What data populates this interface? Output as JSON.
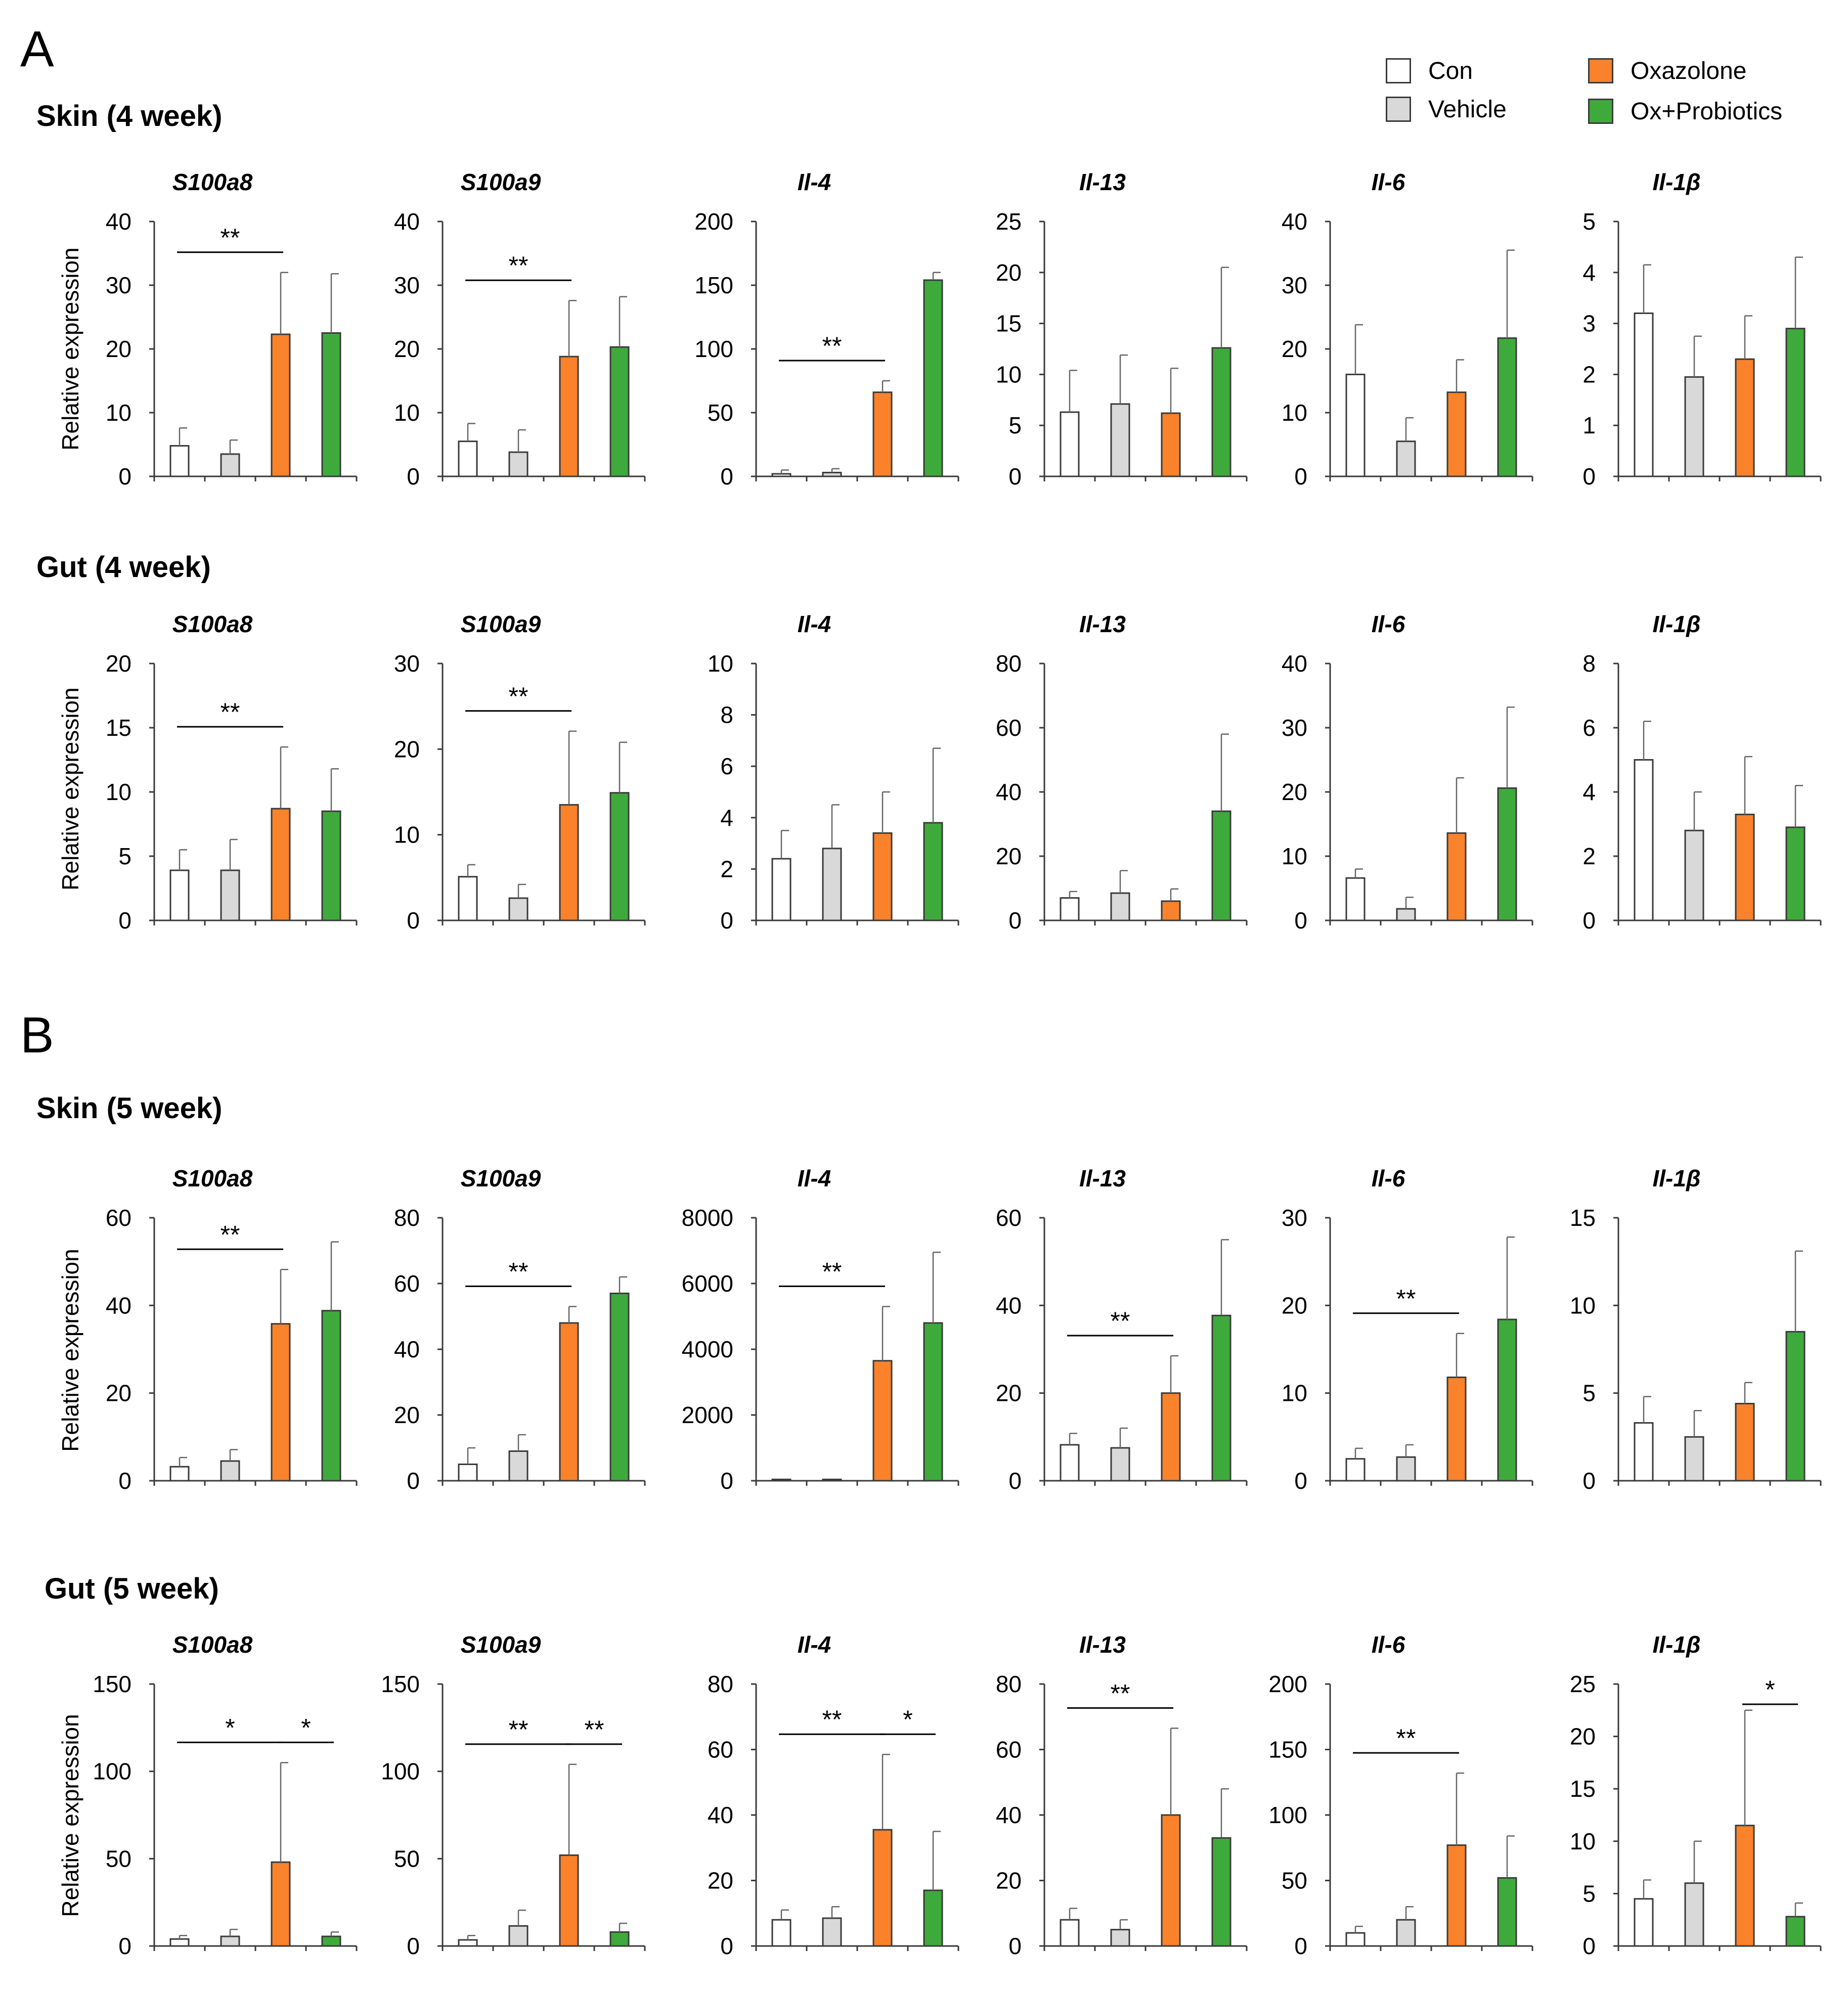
{
  "figure": {
    "panels": [
      {
        "letter": "A",
        "sections": [
          "Skin (4 week)",
          "Gut (4 week)"
        ]
      },
      {
        "letter": "B",
        "sections": [
          "Skin (5 week)",
          "Gut (5 week)"
        ]
      }
    ]
  },
  "legend": [
    {
      "label": "Con",
      "color": "#ffffff"
    },
    {
      "label": "Vehicle",
      "color": "#d9d9d9"
    },
    {
      "label": "Oxazolone",
      "color": "#f9822b"
    },
    {
      "label": "Ox+Probiotics",
      "color": "#3eaa3c"
    }
  ],
  "colors": {
    "axis": "#3a3a3a",
    "bar_edge": "#3a3a3a"
  },
  "chart_data": [
    {
      "type": "bar",
      "section": "Skin (4 week)",
      "title": "S100a8",
      "ylabel": "Relative expression",
      "categories": [
        "Con",
        "Vehicle",
        "Oxazolone",
        "Ox+Probiotics"
      ],
      "values": [
        4.8,
        3.5,
        22.3,
        22.5
      ],
      "errors": [
        2.8,
        2.2,
        9.7,
        9.3
      ],
      "ylim": [
        0,
        40
      ],
      "yticks": [
        0,
        10,
        20,
        30,
        40
      ],
      "significance": [
        {
          "from": 0,
          "to": 2,
          "label": "**"
        }
      ]
    },
    {
      "type": "bar",
      "section": "Skin (4 week)",
      "title": "S100a9",
      "ylabel": "",
      "categories": [
        "Con",
        "Vehicle",
        "Oxazolone",
        "Ox+Probiotics"
      ],
      "values": [
        5.5,
        3.8,
        18.8,
        20.3
      ],
      "errors": [
        2.8,
        3.5,
        8.8,
        7.9
      ],
      "ylim": [
        0,
        40
      ],
      "yticks": [
        0,
        10,
        20,
        30,
        40
      ],
      "significance": [
        {
          "from": 0,
          "to": 2,
          "label": "**"
        }
      ]
    },
    {
      "type": "bar",
      "section": "Skin (4 week)",
      "title": "Il-4",
      "ylabel": "",
      "categories": [
        "Con",
        "Vehicle",
        "Oxazolone",
        "Ox+Probiotics"
      ],
      "values": [
        2,
        3,
        66,
        154
      ],
      "errors": [
        3,
        3,
        9,
        6
      ],
      "ylim": [
        0,
        200
      ],
      "yticks": [
        0,
        50,
        100,
        150,
        200
      ],
      "significance": [
        {
          "from": 0,
          "to": 2,
          "label": "**"
        }
      ]
    },
    {
      "type": "bar",
      "section": "Skin (4 week)",
      "title": "Il-13",
      "ylabel": "",
      "categories": [
        "Con",
        "Vehicle",
        "Oxazolone",
        "Ox+Probiotics"
      ],
      "values": [
        6.3,
        7.1,
        6.2,
        12.6
      ],
      "errors": [
        4.1,
        4.8,
        4.4,
        7.9
      ],
      "ylim": [
        0,
        25
      ],
      "yticks": [
        0,
        5,
        10,
        15,
        20,
        25
      ],
      "significance": []
    },
    {
      "type": "bar",
      "section": "Skin (4 week)",
      "title": "Il-6",
      "ylabel": "",
      "categories": [
        "Con",
        "Vehicle",
        "Oxazolone",
        "Ox+Probiotics"
      ],
      "values": [
        16,
        5.5,
        13.2,
        21.7
      ],
      "errors": [
        7.8,
        3.7,
        5.1,
        13.8
      ],
      "ylim": [
        0,
        40
      ],
      "yticks": [
        0,
        10,
        20,
        30,
        40
      ],
      "significance": []
    },
    {
      "type": "bar",
      "section": "Skin (4 week)",
      "title": "Il-1β",
      "ylabel": "",
      "categories": [
        "Con",
        "Vehicle",
        "Oxazolone",
        "Ox+Probiotics"
      ],
      "values": [
        3.2,
        1.95,
        2.3,
        2.9
      ],
      "errors": [
        0.95,
        0.8,
        0.85,
        1.4
      ],
      "ylim": [
        0,
        5
      ],
      "yticks": [
        0,
        1,
        2,
        3,
        4,
        5
      ],
      "significance": []
    },
    {
      "type": "bar",
      "section": "Gut (4 week)",
      "title": "S100a8",
      "ylabel": "Relative expression",
      "categories": [
        "Con",
        "Vehicle",
        "Oxazolone",
        "Ox+Probiotics"
      ],
      "values": [
        3.9,
        3.9,
        8.7,
        8.5
      ],
      "errors": [
        1.6,
        2.4,
        4.8,
        3.3
      ],
      "ylim": [
        0,
        20
      ],
      "yticks": [
        0,
        5,
        10,
        15,
        20
      ],
      "significance": [
        {
          "from": 0,
          "to": 2,
          "label": "**"
        }
      ]
    },
    {
      "type": "bar",
      "section": "Gut (4 week)",
      "title": "S100a9",
      "ylabel": "",
      "categories": [
        "Con",
        "Vehicle",
        "Oxazolone",
        "Ox+Probiotics"
      ],
      "values": [
        5.1,
        2.6,
        13.5,
        14.9
      ],
      "errors": [
        1.4,
        1.6,
        8.6,
        5.9
      ],
      "ylim": [
        0,
        30
      ],
      "yticks": [
        0,
        10,
        20,
        30
      ],
      "significance": [
        {
          "from": 0,
          "to": 2,
          "label": "**"
        }
      ]
    },
    {
      "type": "bar",
      "section": "Gut (4 week)",
      "title": "Il-4",
      "ylabel": "",
      "categories": [
        "Con",
        "Vehicle",
        "Oxazolone",
        "Ox+Probiotics"
      ],
      "values": [
        2.4,
        2.8,
        3.4,
        3.8
      ],
      "errors": [
        1.1,
        1.7,
        1.6,
        2.9
      ],
      "ylim": [
        0,
        10
      ],
      "yticks": [
        0,
        2,
        4,
        6,
        8,
        10
      ],
      "significance": []
    },
    {
      "type": "bar",
      "section": "Gut (4 week)",
      "title": "Il-13",
      "ylabel": "",
      "categories": [
        "Con",
        "Vehicle",
        "Oxazolone",
        "Ox+Probiotics"
      ],
      "values": [
        7,
        8.5,
        6,
        34
      ],
      "errors": [
        2,
        7,
        3.8,
        24
      ],
      "ylim": [
        0,
        80
      ],
      "yticks": [
        0,
        20,
        40,
        60,
        80
      ],
      "significance": []
    },
    {
      "type": "bar",
      "section": "Gut (4 week)",
      "title": "Il-6",
      "ylabel": "",
      "categories": [
        "Con",
        "Vehicle",
        "Oxazolone",
        "Ox+Probiotics"
      ],
      "values": [
        6.6,
        1.8,
        13.6,
        20.6
      ],
      "errors": [
        1.4,
        1.8,
        8.6,
        12.6
      ],
      "ylim": [
        0,
        40
      ],
      "yticks": [
        0,
        10,
        20,
        30,
        40
      ],
      "significance": []
    },
    {
      "type": "bar",
      "section": "Gut (4 week)",
      "title": "Il-1β",
      "ylabel": "",
      "categories": [
        "Con",
        "Vehicle",
        "Oxazolone",
        "Ox+Probiotics"
      ],
      "values": [
        5,
        2.8,
        3.3,
        2.9
      ],
      "errors": [
        1.2,
        1.2,
        1.8,
        1.3
      ],
      "ylim": [
        0,
        8
      ],
      "yticks": [
        0,
        2,
        4,
        6,
        8
      ],
      "significance": []
    },
    {
      "type": "bar",
      "section": "Skin (5 week)",
      "title": "S100a8",
      "ylabel": "Relative expression",
      "categories": [
        "Con",
        "Vehicle",
        "Oxazolone",
        "Ox+Probiotics"
      ],
      "values": [
        3.2,
        4.5,
        35.8,
        38.8
      ],
      "errors": [
        2.1,
        2.6,
        12.4,
        15.7
      ],
      "ylim": [
        0,
        60
      ],
      "yticks": [
        0,
        20,
        40,
        60
      ],
      "significance": [
        {
          "from": 0,
          "to": 2,
          "label": "**"
        }
      ]
    },
    {
      "type": "bar",
      "section": "Skin (5 week)",
      "title": "S100a9",
      "ylabel": "",
      "categories": [
        "Con",
        "Vehicle",
        "Oxazolone",
        "Ox+Probiotics"
      ],
      "values": [
        5,
        9,
        48,
        57
      ],
      "errors": [
        5,
        5,
        5,
        5
      ],
      "ylim": [
        0,
        80
      ],
      "yticks": [
        0,
        20,
        40,
        60,
        80
      ],
      "significance": [
        {
          "from": 0,
          "to": 2,
          "label": "**"
        }
      ]
    },
    {
      "type": "bar",
      "section": "Skin (5 week)",
      "title": "Il-4",
      "ylabel": "",
      "categories": [
        "Con",
        "Vehicle",
        "Oxazolone",
        "Ox+Probiotics"
      ],
      "values": [
        40,
        40,
        3650,
        4800
      ],
      "errors": [
        0,
        0,
        1650,
        2150
      ],
      "ylim": [
        0,
        8000
      ],
      "yticks": [
        0,
        2000,
        4000,
        6000,
        8000
      ],
      "significance": [
        {
          "from": 0,
          "to": 2,
          "label": "**"
        }
      ]
    },
    {
      "type": "bar",
      "section": "Skin (5 week)",
      "title": "Il-13",
      "ylabel": "",
      "categories": [
        "Con",
        "Vehicle",
        "Oxazolone",
        "Ox+Probiotics"
      ],
      "values": [
        8.2,
        7.5,
        20,
        37.7
      ],
      "errors": [
        2.6,
        4.5,
        8.5,
        17.3
      ],
      "ylim": [
        0,
        60
      ],
      "yticks": [
        0,
        20,
        40,
        60
      ],
      "significance": [
        {
          "from": 0,
          "to": 2,
          "label": "**"
        }
      ]
    },
    {
      "type": "bar",
      "section": "Skin (5 week)",
      "title": "Il-6",
      "ylabel": "",
      "categories": [
        "Con",
        "Vehicle",
        "Oxazolone",
        "Ox+Probiotics"
      ],
      "values": [
        2.5,
        2.7,
        11.8,
        18.4
      ],
      "errors": [
        1.2,
        1.4,
        5,
        9.4
      ],
      "ylim": [
        0,
        30
      ],
      "yticks": [
        0,
        10,
        20,
        30
      ],
      "significance": [
        {
          "from": 0,
          "to": 2,
          "label": "**"
        }
      ]
    },
    {
      "type": "bar",
      "section": "Skin (5 week)",
      "title": "Il-1β",
      "ylabel": "",
      "categories": [
        "Con",
        "Vehicle",
        "Oxazolone",
        "Ox+Probiotics"
      ],
      "values": [
        3.3,
        2.5,
        4.4,
        8.5
      ],
      "errors": [
        1.5,
        1.5,
        1.2,
        4.6
      ],
      "ylim": [
        0,
        15
      ],
      "yticks": [
        0,
        5,
        10,
        15
      ],
      "significance": []
    },
    {
      "type": "bar",
      "section": "Gut (5 week)",
      "title": "S100a8",
      "ylabel": "Relative expression",
      "categories": [
        "Con",
        "Vehicle",
        "Oxazolone",
        "Ox+Probiotics"
      ],
      "values": [
        4,
        5.5,
        48,
        5.5
      ],
      "errors": [
        2,
        4,
        57,
        2.5
      ],
      "ylim": [
        0,
        150
      ],
      "yticks": [
        0,
        50,
        100,
        150
      ],
      "significance": [
        {
          "from": 0,
          "to": 2,
          "label": "*"
        },
        {
          "from": 2,
          "to": 3,
          "label": "*"
        }
      ]
    },
    {
      "type": "bar",
      "section": "Gut (5 week)",
      "title": "S100a9",
      "ylabel": "",
      "categories": [
        "Con",
        "Vehicle",
        "Oxazolone",
        "Ox+Probiotics"
      ],
      "values": [
        3.5,
        11.5,
        52,
        8
      ],
      "errors": [
        2.5,
        9,
        52,
        5
      ],
      "ylim": [
        0,
        150
      ],
      "yticks": [
        0,
        50,
        100,
        150
      ],
      "significance": [
        {
          "from": 0,
          "to": 2,
          "label": "**"
        },
        {
          "from": 2,
          "to": 3,
          "label": "**"
        }
      ]
    },
    {
      "type": "bar",
      "section": "Gut (5 week)",
      "title": "Il-4",
      "ylabel": "",
      "categories": [
        "Con",
        "Vehicle",
        "Oxazolone",
        "Ox+Probiotics"
      ],
      "values": [
        8,
        8.5,
        35.5,
        17
      ],
      "errors": [
        3,
        3.5,
        23,
        18
      ],
      "ylim": [
        0,
        80
      ],
      "yticks": [
        0,
        20,
        40,
        60,
        80
      ],
      "significance": [
        {
          "from": 0,
          "to": 2,
          "label": "**"
        },
        {
          "from": 2,
          "to": 3,
          "label": "*"
        }
      ]
    },
    {
      "type": "bar",
      "section": "Gut (5 week)",
      "title": "Il-13",
      "ylabel": "",
      "categories": [
        "Con",
        "Vehicle",
        "Oxazolone",
        "Ox+Probiotics"
      ],
      "values": [
        8,
        5,
        40,
        33
      ],
      "errors": [
        3.5,
        3,
        26.5,
        15
      ],
      "ylim": [
        0,
        80
      ],
      "yticks": [
        0,
        20,
        40,
        60,
        80
      ],
      "significance": [
        {
          "from": 0,
          "to": 2,
          "label": "**"
        }
      ]
    },
    {
      "type": "bar",
      "section": "Gut (5 week)",
      "title": "Il-6",
      "ylabel": "",
      "categories": [
        "Con",
        "Vehicle",
        "Oxazolone",
        "Ox+Probiotics"
      ],
      "values": [
        10,
        20,
        77,
        52
      ],
      "errors": [
        5,
        10,
        55,
        32
      ],
      "ylim": [
        0,
        200
      ],
      "yticks": [
        0,
        50,
        100,
        150,
        200
      ],
      "significance": [
        {
          "from": 0,
          "to": 2,
          "label": "**"
        }
      ]
    },
    {
      "type": "bar",
      "section": "Gut (5 week)",
      "title": "Il-1β",
      "ylabel": "",
      "categories": [
        "Con",
        "Vehicle",
        "Oxazolone",
        "Ox+Probiotics"
      ],
      "values": [
        4.5,
        6,
        11.5,
        2.8
      ],
      "errors": [
        1.8,
        4,
        11,
        1.3
      ],
      "ylim": [
        0,
        25
      ],
      "yticks": [
        0,
        5,
        10,
        15,
        20,
        25
      ],
      "significance": [
        {
          "from": 2,
          "to": 3,
          "label": "*"
        }
      ]
    }
  ]
}
